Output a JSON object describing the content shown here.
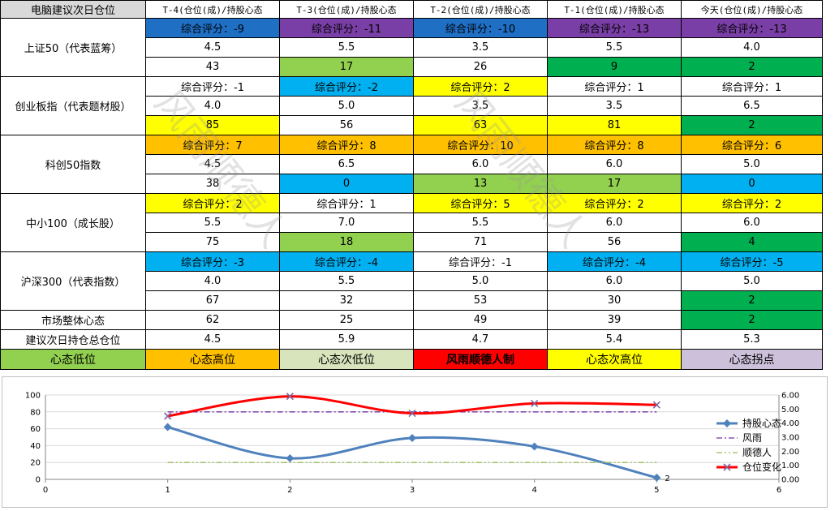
{
  "colors": {
    "blue_dark": "#1f6fc5",
    "purple": "#7a3fa6",
    "light_blue": "#00b0f0",
    "yellow": "#ffff00",
    "orange": "#ffc000",
    "light_green": "#92d050",
    "green": "#00b050",
    "red": "#ff0000",
    "pale_green": "#d8e4bc",
    "lavender": "#ccc0da",
    "header_gray": "#d9d9d9",
    "white": "#ffffff"
  },
  "table": {
    "corner": "电脑建议次日仓位",
    "columns": [
      "T-4(仓位(成)/持股心态",
      "T-3(仓位(成)/持股心态",
      "T-2(仓位(成)/持股心态",
      "T-1(仓位(成)/持股心态",
      "今天(仓位(成)/持股心态"
    ],
    "groups": [
      {
        "label": "上证50（代表蓝筹）",
        "score": [
          "综合评分：-9",
          "综合评分：-11",
          "综合评分：-10",
          "综合评分：-13",
          "综合评分：-13"
        ],
        "score_colors": [
          "blue_dark",
          "purple",
          "blue_dark",
          "purple",
          "purple"
        ],
        "position": [
          "4.5",
          "5.5",
          "3.5",
          "5.5",
          "4.0"
        ],
        "mood": [
          "43",
          "17",
          "26",
          "9",
          "2"
        ],
        "mood_colors": [
          "white",
          "light_green",
          "white",
          "green",
          "green"
        ]
      },
      {
        "label": "创业板指（代表题材股）",
        "score": [
          "综合评分：-1",
          "综合评分：-2",
          "综合评分：2",
          "综合评分：1",
          "综合评分：1"
        ],
        "score_colors": [
          "white",
          "light_blue",
          "yellow",
          "white",
          "white"
        ],
        "position": [
          "4.0",
          "5.0",
          "3.5",
          "3.5",
          "6.5"
        ],
        "mood": [
          "85",
          "56",
          "63",
          "81",
          "2"
        ],
        "mood_colors": [
          "yellow",
          "white",
          "yellow",
          "yellow",
          "green"
        ]
      },
      {
        "label": "科创50指数",
        "score": [
          "综合评分：7",
          "综合评分：8",
          "综合评分：10",
          "综合评分：8",
          "综合评分：6"
        ],
        "score_colors": [
          "orange",
          "orange",
          "orange",
          "orange",
          "orange"
        ],
        "position": [
          "4.5",
          "6.5",
          "6.0",
          "6.0",
          "5.0"
        ],
        "mood": [
          "38",
          "0",
          "13",
          "17",
          "0"
        ],
        "mood_colors": [
          "white",
          "light_blue",
          "light_green",
          "light_green",
          "light_blue"
        ]
      },
      {
        "label": "中小100（成长股）",
        "score": [
          "综合评分：2",
          "综合评分：1",
          "综合评分：5",
          "综合评分：2",
          "综合评分：2"
        ],
        "score_colors": [
          "yellow",
          "white",
          "yellow",
          "yellow",
          "yellow"
        ],
        "position": [
          "5.5",
          "7.0",
          "5.5",
          "6.0",
          "6.0"
        ],
        "mood": [
          "75",
          "18",
          "71",
          "56",
          "4"
        ],
        "mood_colors": [
          "white",
          "light_green",
          "white",
          "white",
          "green"
        ]
      },
      {
        "label": "沪深300（代表指数）",
        "score": [
          "综合评分：-3",
          "综合评分：-4",
          "综合评分：-1",
          "综合评分：-4",
          "综合评分：-5"
        ],
        "score_colors": [
          "light_blue",
          "light_blue",
          "white",
          "light_blue",
          "light_blue"
        ],
        "position": [
          "4.0",
          "5.5",
          "5.0",
          "6.0",
          "5.0"
        ],
        "mood": [
          "67",
          "32",
          "53",
          "30",
          "2"
        ],
        "mood_colors": [
          "white",
          "white",
          "white",
          "white",
          "green"
        ]
      }
    ],
    "market_label": "市场整体心态",
    "market": [
      "62",
      "25",
      "49",
      "39",
      "2"
    ],
    "market_colors": [
      "white",
      "white",
      "white",
      "white",
      "green"
    ],
    "suggest_label": "建议次日持仓总仓位",
    "suggest": [
      "4.5",
      "5.9",
      "4.7",
      "5.4",
      "5.3"
    ],
    "legend": [
      {
        "label": "心态低位",
        "color": "light_green"
      },
      {
        "label": "心态高位",
        "color": "orange"
      },
      {
        "label": "心态次低位",
        "color": "pale_green"
      },
      {
        "label": "风雨顺德人制",
        "color": "red"
      },
      {
        "label": "心态次高位",
        "color": "yellow"
      },
      {
        "label": "心态拐点",
        "color": "lavender"
      }
    ]
  },
  "watermark": [
    "风雨顺德人",
    "风雨顺德人"
  ],
  "chart_data": {
    "type": "line",
    "x": [
      1,
      2,
      3,
      4,
      5
    ],
    "xlim": [
      0,
      6
    ],
    "xticks": [
      "0",
      "1",
      "2",
      "3",
      "4",
      "5",
      "6"
    ],
    "ylim_left": [
      0,
      100
    ],
    "yticks_left": [
      "0",
      "20",
      "40",
      "60",
      "80",
      "100"
    ],
    "ylim_right": [
      0,
      6
    ],
    "yticks_right": [
      "0.00",
      "1.00",
      "2.00",
      "3.00",
      "4.00",
      "5.00",
      "6.00"
    ],
    "grid": true,
    "legend_position": "right",
    "series": [
      {
        "name": "持股心态",
        "axis": "left",
        "values": [
          62,
          25,
          49,
          39,
          2
        ],
        "color": "#4f81bd",
        "end_label": "2"
      },
      {
        "name": "风雨",
        "axis": "left",
        "values": [
          80,
          80,
          80,
          80,
          80
        ],
        "color": "#7030a0"
      },
      {
        "name": "顺德人",
        "axis": "left",
        "values": [
          20,
          20,
          20,
          20,
          20
        ],
        "color": "#9bbb59"
      },
      {
        "name": "仓位变化",
        "axis": "right",
        "values": [
          4.5,
          5.9,
          4.7,
          5.4,
          5.3
        ],
        "color": "#ff0000"
      }
    ]
  }
}
